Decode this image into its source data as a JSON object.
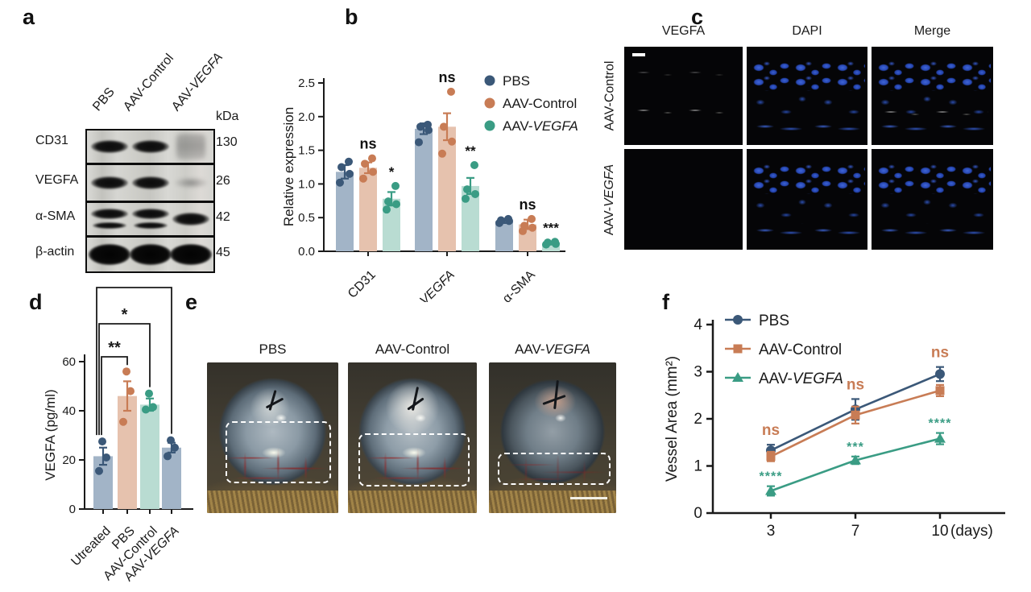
{
  "panels": {
    "a": "a",
    "b": "b",
    "c": "c",
    "d": "d",
    "e": "e",
    "f": "f"
  },
  "colors": {
    "pbs": "#3b5878",
    "control": "#c87c55",
    "vegfa": "#3a9c84",
    "pbs_bar": "#a2b4c7",
    "control_bar": "#e6c2ae",
    "vegfa_bar": "#b9dcd2",
    "axis": "#1a1a1a",
    "sig_black": "#111111"
  },
  "panel_a": {
    "lanes": [
      "PBS",
      "AAV-Control",
      "AAV-VEGFA"
    ],
    "unit": "kDa",
    "rows": [
      {
        "protein": "CD31",
        "kda": "130",
        "bands": [
          "strong",
          "strong",
          "smear"
        ]
      },
      {
        "protein": "VEGFA",
        "kda": "26",
        "bands": [
          "strong",
          "strong",
          "faint"
        ]
      },
      {
        "protein": "α-SMA",
        "kda": "42",
        "bands": [
          "double",
          "double",
          "strong"
        ]
      },
      {
        "protein": "β-actin",
        "kda": "45",
        "bands": [
          "heavy",
          "heavy",
          "heavy"
        ]
      }
    ]
  },
  "panel_c": {
    "col_headers": [
      "VEGFA",
      "DAPI",
      "Merge"
    ],
    "row_labels": [
      "AAV-Control",
      "AAV-VEGFA"
    ]
  },
  "panel_e": {
    "labels": [
      "PBS",
      "AAV-Control",
      "AAV-VEGFA"
    ]
  },
  "chart_data": [
    {
      "id": "b",
      "type": "bar",
      "title": "",
      "ylabel": "Relative expression",
      "ylim": [
        0,
        2.5
      ],
      "yticks": [
        "0.0",
        "0.5",
        "1.0",
        "1.5",
        "2.0",
        "2.5"
      ],
      "categories": [
        "CD31",
        "VEGFA",
        "α-SMA"
      ],
      "categories_italic": [
        false,
        true,
        false
      ],
      "legend": [
        "PBS",
        "AAV-Control",
        "AAV-VEGFA"
      ],
      "legend_position": "upper right",
      "grid": false,
      "series": [
        {
          "name": "PBS",
          "values": [
            1.18,
            1.82,
            0.45
          ],
          "errors": [
            0.1,
            0.08,
            0.03
          ],
          "points": [
            [
              1.02,
              1.15,
              1.25,
              1.33
            ],
            [
              1.62,
              1.8,
              1.85,
              1.88
            ],
            [
              0.42,
              0.45,
              0.46,
              0.48
            ]
          ],
          "sig": [
            "",
            "",
            ""
          ]
        },
        {
          "name": "AAV-Control",
          "values": [
            1.24,
            1.85,
            0.4
          ],
          "errors": [
            0.08,
            0.2,
            0.07
          ],
          "points": [
            [
              1.08,
              1.18,
              1.3,
              1.38
            ],
            [
              1.45,
              1.63,
              1.85,
              2.37
            ],
            [
              0.3,
              0.35,
              0.38,
              0.48
            ]
          ],
          "sig": [
            "ns",
            "ns",
            "ns"
          ]
        },
        {
          "name": "AAV-VEGFA",
          "values": [
            0.78,
            0.97,
            0.12
          ],
          "errors": [
            0.1,
            0.12,
            0.02
          ],
          "points": [
            [
              0.62,
              0.7,
              0.74,
              0.97
            ],
            [
              0.78,
              0.85,
              0.92,
              1.28
            ],
            [
              0.1,
              0.11,
              0.13,
              0.14
            ]
          ],
          "sig": [
            "*",
            "**",
            "***"
          ]
        }
      ]
    },
    {
      "id": "d",
      "type": "bar",
      "title": "",
      "ylabel": "VEGFA (pg/ml)",
      "ylim": [
        0,
        60
      ],
      "yticks": [
        "0",
        "20",
        "40",
        "60"
      ],
      "categories": [
        "Utreated",
        "PBS",
        "AAV-Control",
        "AAV-VEGFA"
      ],
      "values": [
        21.5,
        46,
        42.5,
        25
      ],
      "errors": [
        3.5,
        6,
        2.5,
        2
      ],
      "points": [
        [
          15.5,
          21,
          27.5
        ],
        [
          35.5,
          48,
          56
        ],
        [
          40.5,
          41.5,
          47
        ],
        [
          21.5,
          25,
          28
        ]
      ],
      "bar_colors": [
        "pbs_bar",
        "control_bar",
        "vegfa_bar",
        "pbs_bar"
      ],
      "dot_colors": [
        "pbs",
        "control",
        "vegfa",
        "pbs"
      ],
      "grid": false,
      "brackets": [
        {
          "from": 0,
          "to": 1,
          "label": "**"
        },
        {
          "from": 0,
          "to": 2,
          "label": "*"
        },
        {
          "from": 0,
          "to": 3,
          "label": ""
        }
      ]
    },
    {
      "id": "f",
      "type": "line",
      "title": "",
      "ylabel": "Vessel Area (mm²)",
      "x_suffix": "(days)",
      "x": [
        3,
        7,
        10
      ],
      "ylim": [
        0,
        4
      ],
      "yticks": [
        "0",
        "1",
        "2",
        "3",
        "4"
      ],
      "grid": false,
      "legend_position": "upper left",
      "series": [
        {
          "name": "PBS",
          "marker": "circle",
          "color": "pbs",
          "values": [
            1.33,
            2.2,
            2.95
          ],
          "errors": [
            0.12,
            0.22,
            0.15
          ]
        },
        {
          "name": "AAV-Control",
          "marker": "square",
          "color": "control",
          "values": [
            1.2,
            2.08,
            2.6
          ],
          "errors": [
            0.1,
            0.18,
            0.12
          ]
        },
        {
          "name": "AAV-VEGFA",
          "marker": "triangle",
          "color": "vegfa",
          "values": [
            0.47,
            1.12,
            1.58
          ],
          "errors": [
            0.1,
            0.08,
            0.12
          ]
        }
      ],
      "ns_labels": [
        "ns",
        "ns",
        "ns"
      ],
      "star_labels": [
        "****",
        "***",
        "****"
      ]
    }
  ]
}
